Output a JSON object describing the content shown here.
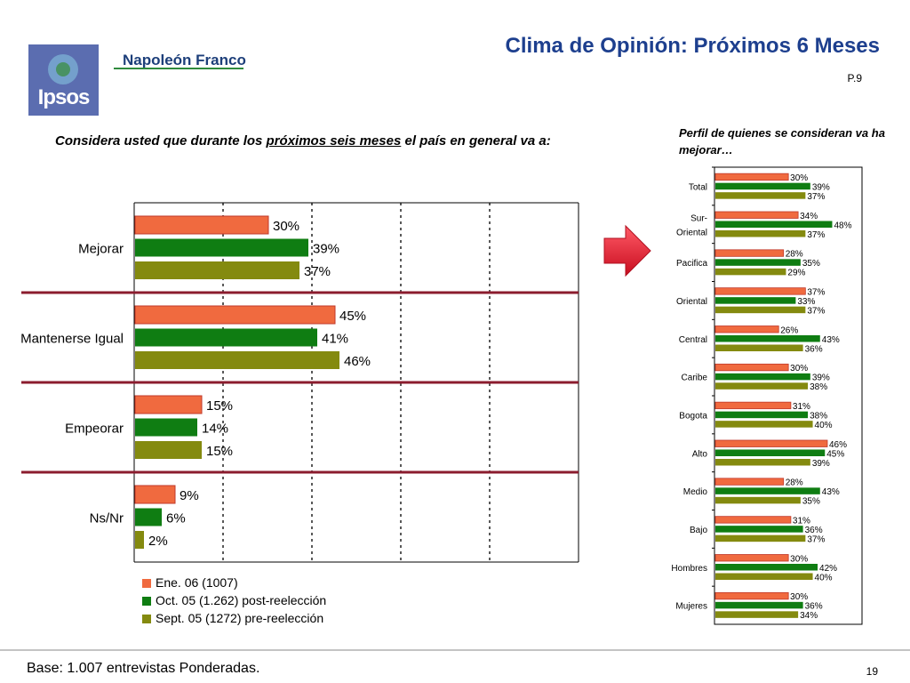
{
  "header": {
    "logo_text": "Ipsos",
    "brand": "Napoleón Franco",
    "title": "Clima de Opinión: Próximos 6 Meses",
    "page_code": "P.9"
  },
  "question": {
    "part1": "Considera usted que durante los ",
    "underlined": "próximos seis meses",
    "part2": " el país en general va a:"
  },
  "perfil_title": "Perfil de quienes se consideran va ha mejorar…",
  "footer": {
    "base": "Base: 1.007 entrevistas Ponderadas.",
    "page_number": "19"
  },
  "colors": {
    "series1": "#f06a3f",
    "series1_edge": "#c0392b",
    "series2": "#0f7d12",
    "series3": "#848a0f",
    "title": "#1d3f8e",
    "divider": "#8b1c2e",
    "arrow": "#e8132c"
  },
  "chart_data": [
    {
      "type": "bar",
      "orientation": "horizontal",
      "categories": [
        "Mejorar",
        "Mantenerse Igual",
        "Empeorar",
        "Ns/Nr"
      ],
      "series": [
        {
          "name": "Ene. 06 (1007)",
          "values": [
            30,
            45,
            15,
            9
          ]
        },
        {
          "name": "Oct. 05 (1.262) post-reelección",
          "values": [
            39,
            41,
            14,
            6
          ]
        },
        {
          "name": "Sept. 05 (1272) pre-reelección",
          "values": [
            37,
            46,
            15,
            2
          ]
        }
      ],
      "value_suffix": "%",
      "xlim": [
        0,
        100
      ],
      "grid": "vertical-dashed",
      "legend": "bottom"
    },
    {
      "type": "bar",
      "orientation": "horizontal",
      "categories": [
        "Total",
        "Sur-\nOriental",
        "Pacifica",
        "Oriental",
        "Central",
        "Caribe",
        "Bogota",
        "Alto",
        "Medio",
        "Bajo",
        "Hombres",
        "Mujeres"
      ],
      "series": [
        {
          "name": "Ene. 06 (1007)",
          "values": [
            30,
            34,
            28,
            37,
            26,
            30,
            31,
            46,
            28,
            31,
            30,
            30
          ]
        },
        {
          "name": "Oct. 05 (1.262) post-reelección",
          "values": [
            39,
            48,
            35,
            33,
            43,
            39,
            38,
            45,
            43,
            36,
            42,
            36
          ]
        },
        {
          "name": "Sept. 05 (1272) pre-reelección",
          "values": [
            37,
            37,
            29,
            37,
            36,
            38,
            40,
            39,
            35,
            37,
            40,
            34
          ]
        }
      ],
      "value_suffix": "%",
      "xlim": [
        0,
        100
      ],
      "legend": "none"
    }
  ]
}
